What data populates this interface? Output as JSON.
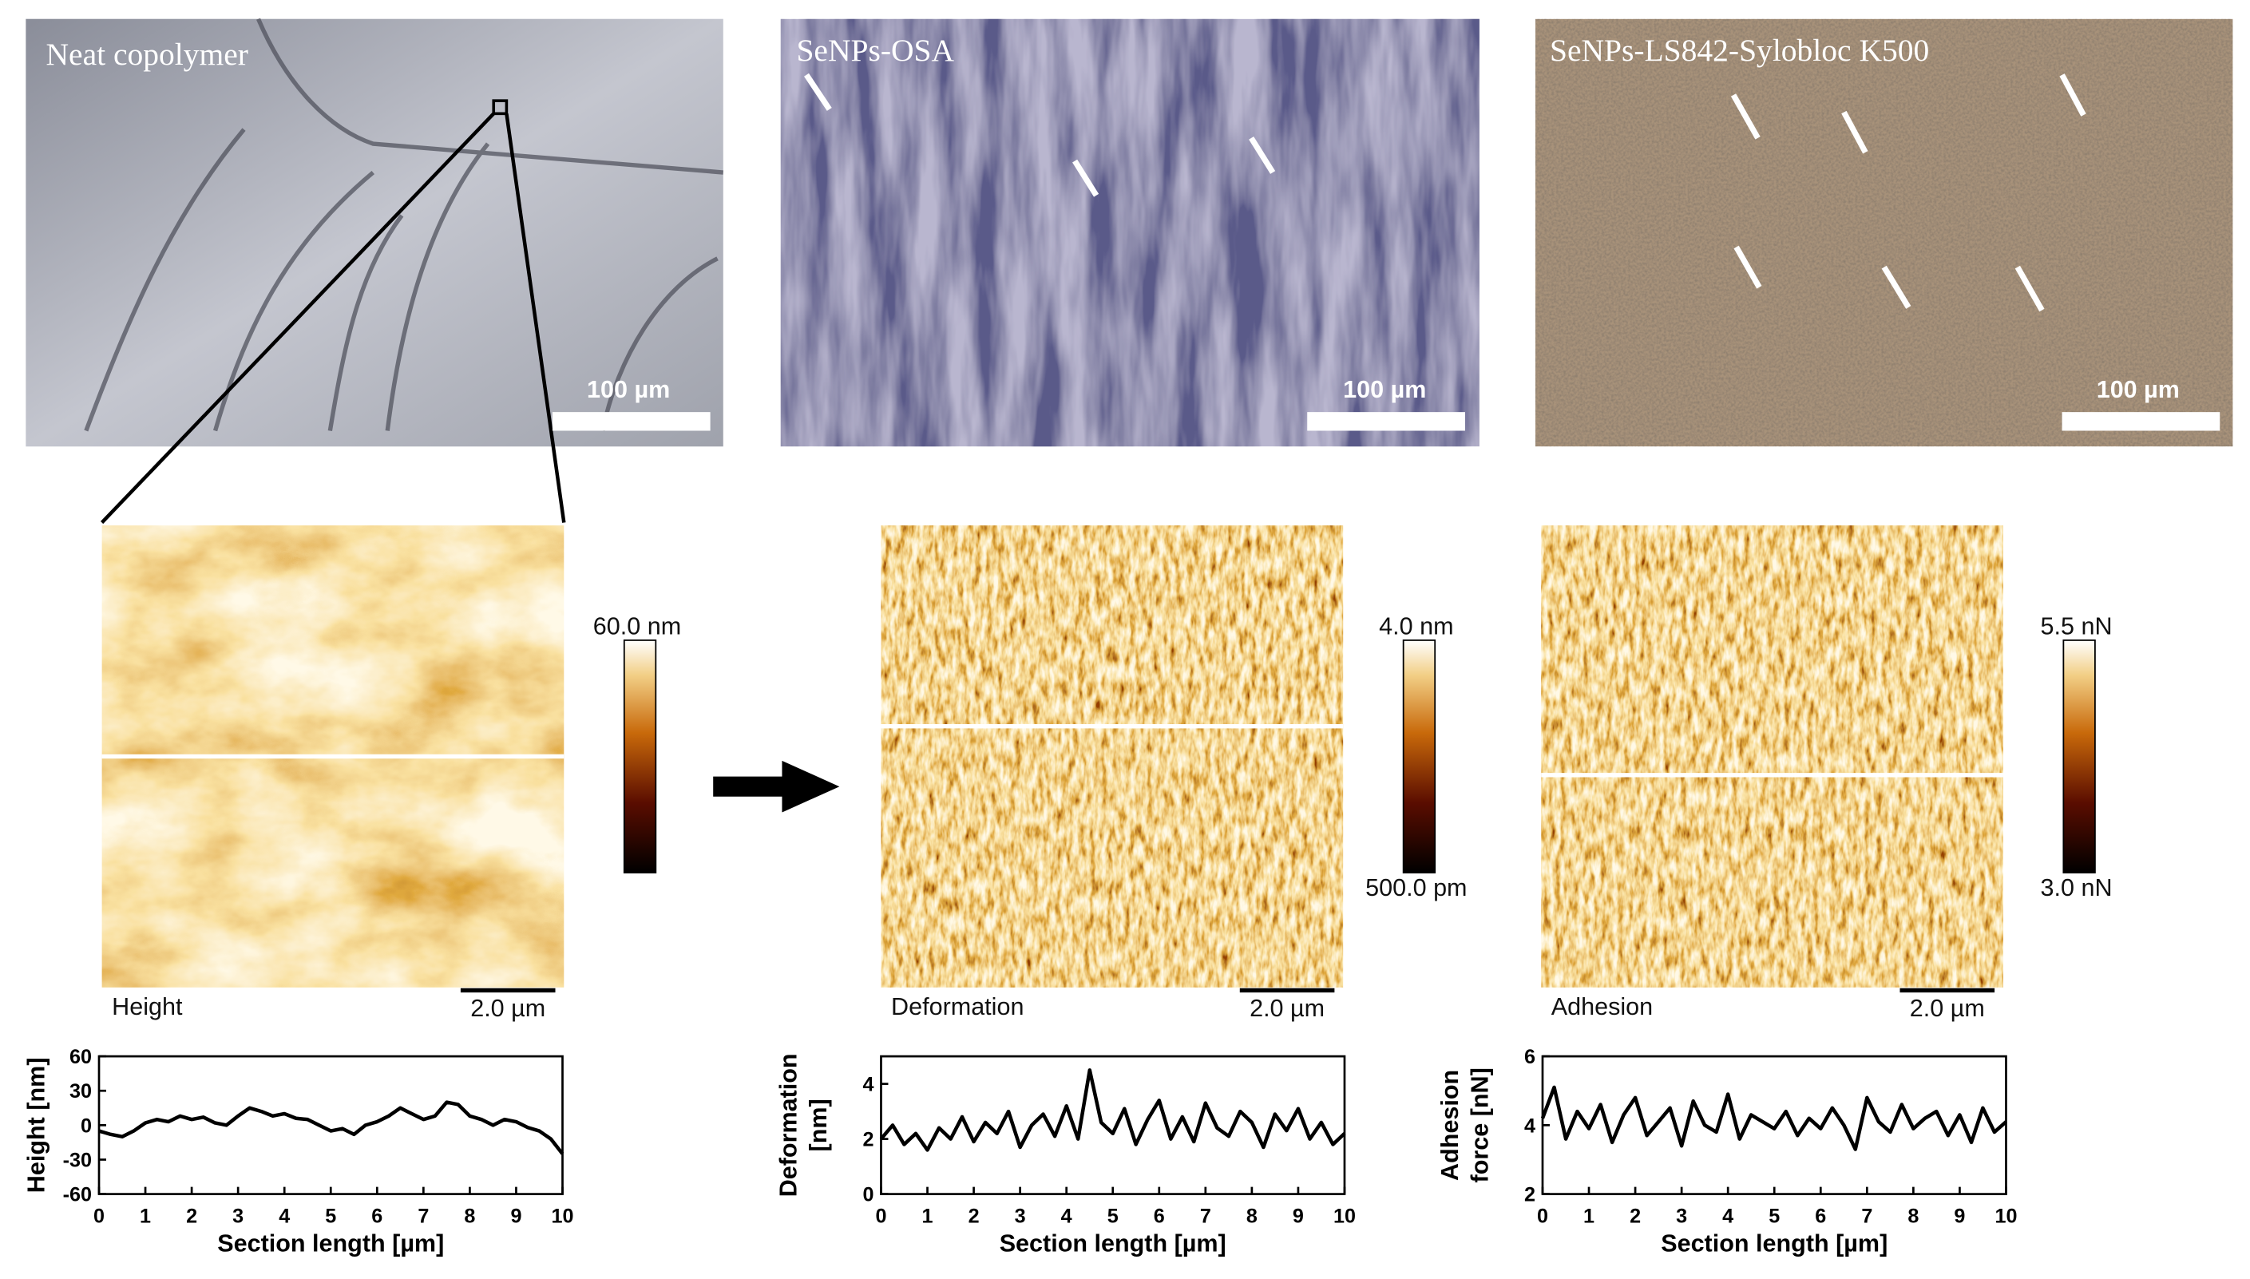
{
  "micrographs": [
    {
      "label": "Neat copolymer",
      "scale_bar": "100 µm"
    },
    {
      "label": "SeNPs-OSA",
      "scale_bar": "100 µm"
    },
    {
      "label": "SeNPs-LS842-Sylobloc K500",
      "scale_bar": "100 µm"
    }
  ],
  "afm_maps": [
    {
      "label": "Height",
      "scale_bar": "2.0 µm",
      "colorbar_max": "60.0 nm",
      "colorbar_min": null
    },
    {
      "label": "Deformation",
      "scale_bar": "2.0 µm",
      "colorbar_max": "4.0 nm",
      "colorbar_min": "500.0 pm"
    },
    {
      "label": "Adhesion",
      "scale_bar": "2.0 µm",
      "colorbar_max": "5.5 nN",
      "colorbar_min": "3.0 nN"
    }
  ],
  "chart_data": [
    {
      "type": "line",
      "y_label": [
        "Height [nm]"
      ],
      "x_label": "Section length [µm]",
      "color": "#000000",
      "x": [
        0,
        0.25,
        0.5,
        0.75,
        1,
        1.25,
        1.5,
        1.75,
        2,
        2.25,
        2.5,
        2.75,
        3,
        3.25,
        3.5,
        3.75,
        4,
        4.25,
        4.5,
        4.75,
        5,
        5.25,
        5.5,
        5.75,
        6,
        6.25,
        6.5,
        6.75,
        7,
        7.25,
        7.5,
        7.75,
        8,
        8.25,
        8.5,
        8.75,
        9,
        9.25,
        9.5,
        9.75,
        10
      ],
      "values": [
        -5,
        -8,
        -10,
        -5,
        2,
        5,
        3,
        8,
        5,
        7,
        2,
        0,
        8,
        15,
        12,
        8,
        10,
        6,
        5,
        0,
        -5,
        -3,
        -8,
        0,
        3,
        8,
        15,
        10,
        5,
        8,
        20,
        18,
        8,
        5,
        0,
        5,
        3,
        -2,
        -5,
        -12,
        -25
      ],
      "xlim": [
        0,
        10
      ],
      "xticks": [
        0,
        1,
        2,
        3,
        4,
        5,
        6,
        7,
        8,
        9,
        10
      ],
      "ylim": [
        -60,
        60
      ],
      "yticks": [
        -60,
        -30,
        0,
        30,
        60
      ]
    },
    {
      "type": "line",
      "y_label": [
        "Deformation",
        "[nm]"
      ],
      "x_label": "Section length [µm]",
      "color": "#000000",
      "x": [
        0,
        0.25,
        0.5,
        0.75,
        1,
        1.25,
        1.5,
        1.75,
        2,
        2.25,
        2.5,
        2.75,
        3,
        3.25,
        3.5,
        3.75,
        4,
        4.25,
        4.5,
        4.75,
        5,
        5.25,
        5.5,
        5.75,
        6,
        6.25,
        6.5,
        6.75,
        7,
        7.25,
        7.5,
        7.75,
        8,
        8.25,
        8.5,
        8.75,
        9,
        9.25,
        9.5,
        9.75,
        10
      ],
      "values": [
        2,
        2.5,
        1.8,
        2.2,
        1.6,
        2.4,
        2,
        2.8,
        1.9,
        2.6,
        2.2,
        3,
        1.7,
        2.5,
        2.9,
        2.1,
        3.2,
        2,
        4.5,
        2.6,
        2.2,
        3.1,
        1.8,
        2.7,
        3.4,
        2,
        2.8,
        1.9,
        3.3,
        2.4,
        2.1,
        3,
        2.6,
        1.7,
        2.9,
        2.3,
        3.1,
        2,
        2.6,
        1.8,
        2.2
      ],
      "xlim": [
        0,
        10
      ],
      "xticks": [
        0,
        1,
        2,
        3,
        4,
        5,
        6,
        7,
        8,
        9,
        10
      ],
      "ylim": [
        0,
        5
      ],
      "yticks": [
        0,
        2,
        4
      ]
    },
    {
      "type": "line",
      "y_label": [
        "Adhesion",
        "force [nN]"
      ],
      "x_label": "Section length [µm]",
      "color": "#000000",
      "x": [
        0,
        0.25,
        0.5,
        0.75,
        1,
        1.25,
        1.5,
        1.75,
        2,
        2.25,
        2.5,
        2.75,
        3,
        3.25,
        3.5,
        3.75,
        4,
        4.25,
        4.5,
        4.75,
        5,
        5.25,
        5.5,
        5.75,
        6,
        6.25,
        6.5,
        6.75,
        7,
        7.25,
        7.5,
        7.75,
        8,
        8.25,
        8.5,
        8.75,
        9,
        9.25,
        9.5,
        9.75,
        10
      ],
      "values": [
        4.2,
        5.1,
        3.6,
        4.4,
        3.9,
        4.6,
        3.5,
        4.3,
        4.8,
        3.7,
        4.1,
        4.5,
        3.4,
        4.7,
        4,
        3.8,
        4.9,
        3.6,
        4.3,
        4.1,
        3.9,
        4.4,
        3.7,
        4.2,
        3.9,
        4.5,
        4,
        3.3,
        4.8,
        4.1,
        3.8,
        4.6,
        3.9,
        4.2,
        4.4,
        3.7,
        4.3,
        3.5,
        4.5,
        3.8,
        4.1
      ],
      "xlim": [
        0,
        10
      ],
      "xticks": [
        0,
        1,
        2,
        3,
        4,
        5,
        6,
        7,
        8,
        9,
        10
      ],
      "ylim": [
        2,
        6
      ],
      "yticks": [
        2,
        4,
        6
      ]
    }
  ]
}
